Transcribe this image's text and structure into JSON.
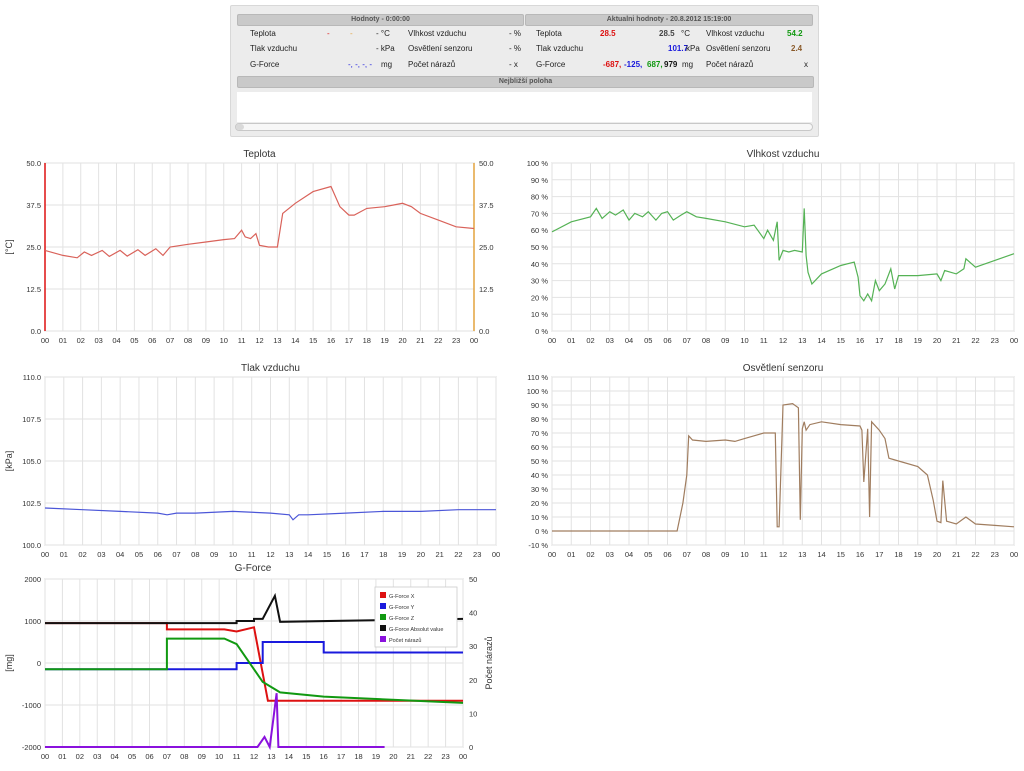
{
  "panel": {
    "left_header": "Hodnoty - 0:00:00",
    "right_header": "Aktualni hodnoty - 20.8.2012 15:19:00",
    "near_header": "Nejbližší poloha",
    "left": {
      "teplota_label": "Teplota",
      "teplota_v1": "-",
      "teplota_v2": "-",
      "teplota_unit": "- °C",
      "tlak_label": "Tlak vzduchu",
      "tlak_unit": "- kPa",
      "gforce_label": "G-Force",
      "gforce_vals": "-, -, -, -",
      "gforce_unit": "mg",
      "vlhkost_label": "Vlhkost vzduchu",
      "vlhkost_unit": "- %",
      "osvetleni_label": "Osvětlení senzoru",
      "osvetleni_unit": "- %",
      "narazu_label": "Počet nárazů",
      "narazu_unit": "- x"
    },
    "right": {
      "teplota_label": "Teplota",
      "teplota_v1": "28.5",
      "teplota_v2": "28.5",
      "teplota_unit": "°C",
      "tlak_label": "Tlak vzduchu",
      "tlak_value": "101.7",
      "tlak_unit": "kPa",
      "gforce_label": "G-Force",
      "gforce_x": "-687,",
      "gforce_y": "-125,",
      "gforce_z": "687,",
      "gforce_abs": "979",
      "gforce_unit": "mg",
      "vlhkost_label": "Vlhkost vzduchu",
      "vlhkost_value": "54.2",
      "osvetleni_label": "Osvětlení senzoru",
      "osvetleni_value": "2.4",
      "narazu_label": "Počet nárazů",
      "narazu_value": "x"
    }
  },
  "colors": {
    "temp": "#d9625a",
    "humidity": "#55b255",
    "pressure": "#4b56d8",
    "light": "#a07d5f",
    "red": "#dd1111",
    "blue": "#1a1add",
    "green": "#119911",
    "black": "#111111",
    "purple": "#8a11dd",
    "orange": "#e3a33f"
  },
  "hours": [
    "00",
    "01",
    "02",
    "03",
    "04",
    "05",
    "06",
    "07",
    "08",
    "09",
    "10",
    "11",
    "12",
    "13",
    "14",
    "15",
    "16",
    "17",
    "18",
    "19",
    "20",
    "21",
    "22",
    "23",
    "00"
  ],
  "chart_data": [
    {
      "type": "line",
      "title": "Teplota",
      "ylabel": "[°C]",
      "ylim": [
        0,
        50
      ],
      "yticks": [
        "0.0",
        "12.5",
        "25.0",
        "37.5",
        "50.0"
      ],
      "series": [
        {
          "x": [
            0,
            1,
            1.8,
            2.2,
            2.6,
            3.2,
            3.6,
            4.2,
            4.6,
            5.2,
            5.6,
            6.2,
            6.6,
            7,
            8,
            9,
            10,
            10.6,
            11,
            11.2,
            11.5,
            11.8,
            12,
            12.5,
            13,
            13.3,
            14,
            15,
            16,
            16.5,
            17,
            17.3,
            18,
            19,
            19.5,
            20,
            20.5,
            21,
            22,
            23,
            24
          ],
          "y": [
            24,
            22.5,
            21.8,
            23.5,
            22.5,
            24,
            22.2,
            24,
            22.3,
            24.2,
            22.5,
            24.5,
            22.5,
            25,
            25.8,
            26.5,
            27.2,
            27.5,
            30,
            28,
            27.5,
            29,
            25.5,
            25,
            25,
            35,
            38,
            41.5,
            43,
            37,
            34.5,
            34.5,
            36.5,
            37,
            37.5,
            38,
            37,
            35,
            33,
            31,
            30.5
          ]
        }
      ]
    },
    {
      "type": "line",
      "title": "Vlhkost vzduchu",
      "ylim": [
        0,
        100
      ],
      "yticks": [
        "0 %",
        "10 %",
        "20 %",
        "30 %",
        "40 %",
        "50 %",
        "60 %",
        "70 %",
        "80 %",
        "90 %",
        "100 %"
      ],
      "series": [
        {
          "x": [
            0,
            1,
            2,
            2.3,
            2.6,
            3,
            3.3,
            3.7,
            4,
            4.3,
            4.7,
            5,
            5.4,
            5.7,
            6,
            6.3,
            6.7,
            7,
            7.5,
            8,
            9,
            10,
            10.5,
            11,
            11.2,
            11.5,
            11.7,
            11.8,
            12,
            12.3,
            12.6,
            13,
            13.1,
            13.2,
            13.3,
            13.5,
            14,
            15,
            15.7,
            15.9,
            16,
            16.2,
            16.4,
            16.6,
            16.8,
            17,
            17.3,
            17.6,
            17.8,
            18,
            19,
            20,
            20.2,
            20.4,
            21,
            21.4,
            21.5,
            22,
            23,
            24
          ],
          "y": [
            59,
            65,
            68,
            73,
            67,
            71,
            69,
            72,
            66,
            70,
            68,
            71,
            66,
            70,
            71,
            66,
            69,
            71,
            68,
            67,
            65,
            62,
            63,
            55,
            60,
            54,
            65,
            42,
            48,
            47,
            48,
            47,
            73,
            45,
            35,
            28,
            34,
            39,
            41,
            32,
            21,
            18,
            22,
            18,
            30,
            24,
            28,
            37,
            25,
            33,
            33,
            34,
            30,
            36,
            34,
            37,
            43,
            38,
            42,
            46
          ]
        }
      ]
    },
    {
      "type": "line",
      "title": "Tlak vzduchu",
      "ylabel": "[kPa]",
      "ylim": [
        100,
        110
      ],
      "yticks": [
        "100.0",
        "102.5",
        "105.0",
        "107.5",
        "110.0"
      ],
      "series": [
        {
          "x": [
            0,
            2,
            4,
            6,
            6.5,
            7,
            8,
            10,
            12,
            13,
            13.2,
            13.5,
            14,
            16,
            18,
            20,
            22,
            24
          ],
          "y": [
            102.2,
            102.1,
            102.0,
            101.9,
            101.8,
            101.9,
            101.9,
            102.0,
            101.9,
            101.8,
            101.5,
            101.8,
            101.8,
            101.9,
            102.0,
            102.0,
            102.1,
            102.1
          ]
        }
      ]
    },
    {
      "type": "line",
      "title": "Osvětlení senzoru",
      "ylim": [
        -10,
        110
      ],
      "yticks": [
        "-10 %",
        "0 %",
        "10 %",
        "20 %",
        "30 %",
        "40 %",
        "50 %",
        "60 %",
        "70 %",
        "80 %",
        "90 %",
        "100 %",
        "110 %"
      ],
      "series": [
        {
          "x": [
            0,
            6.5,
            6.8,
            7,
            7.1,
            7.3,
            8,
            9,
            9.5,
            10,
            11,
            11.6,
            11.7,
            11.8,
            12,
            12.5,
            12.8,
            12.9,
            13,
            13.1,
            13.2,
            13.4,
            14,
            15,
            16,
            16.1,
            16.2,
            16.4,
            16.5,
            16.6,
            17,
            17.3,
            17.5,
            18,
            19,
            19.5,
            19.8,
            20,
            20.2,
            20.3,
            20.5,
            21,
            21.5,
            22,
            23,
            24
          ],
          "y": [
            0,
            0,
            20,
            40,
            68,
            65,
            64,
            65,
            64,
            66,
            70,
            70,
            3,
            3,
            90,
            91,
            88,
            8,
            73,
            78,
            72,
            76,
            78,
            76,
            75,
            72,
            35,
            73,
            10,
            78,
            72,
            66,
            52,
            50,
            46,
            40,
            22,
            7,
            6,
            36,
            7,
            5,
            10,
            5,
            4,
            3
          ]
        }
      ]
    },
    {
      "type": "line",
      "title": "G-Force",
      "ylabel": "[mg]",
      "y2label": "Počet nárazů",
      "ylim": [
        -2000,
        2000
      ],
      "y2lim": [
        0,
        50
      ],
      "yticks": [
        "-2000",
        "-1000",
        "0",
        "1000",
        "2000"
      ],
      "y2ticks": [
        "0",
        "10",
        "20",
        "30",
        "40",
        "50"
      ],
      "legend": [
        "G-Force X",
        "G-Force Y",
        "G-Force Z",
        "G-Force Absolut value",
        "Počet nárazů"
      ],
      "series": [
        {
          "name": "G-Force X",
          "color": "red",
          "x": [
            0,
            7,
            7,
            10.3,
            11,
            11,
            12,
            12,
            12.8,
            12.8,
            24
          ],
          "y": [
            950,
            950,
            800,
            800,
            750,
            750,
            850,
            850,
            -900,
            -900,
            -900
          ]
        },
        {
          "name": "G-Force Y",
          "color": "blue",
          "x": [
            0,
            7,
            7,
            10.3,
            11,
            11,
            12.5,
            12.5,
            16,
            16,
            24
          ],
          "y": [
            -150,
            -150,
            -150,
            -150,
            -150,
            0,
            0,
            500,
            500,
            250,
            250
          ]
        },
        {
          "name": "G-Force Z",
          "color": "green",
          "x": [
            0,
            7,
            7,
            10.3,
            11,
            11,
            12.5,
            12.5,
            13.5,
            13.5,
            16,
            16,
            24
          ],
          "y": [
            -150,
            -150,
            580,
            580,
            450,
            450,
            -450,
            -450,
            -700,
            -700,
            -800,
            -800,
            -950
          ]
        },
        {
          "name": "G-Force Absolut value",
          "color": "black",
          "x": [
            0,
            7,
            7,
            11,
            11,
            12,
            12,
            12.5,
            13.2,
            13.5,
            24
          ],
          "y": [
            950,
            950,
            950,
            950,
            1000,
            1000,
            1050,
            1050,
            1600,
            980,
            1050
          ]
        },
        {
          "name": "Počet nárazů",
          "color": "purple",
          "x": [
            0,
            7,
            7,
            10.5,
            11,
            12,
            12.2,
            12.6,
            12.9,
            13.1,
            13.3,
            13.4,
            16,
            17,
            18,
            19.5
          ],
          "y": [
            0,
            0,
            0,
            0,
            0,
            0,
            0,
            3,
            0,
            8,
            16,
            0,
            0,
            0,
            0,
            0
          ]
        }
      ]
    }
  ]
}
